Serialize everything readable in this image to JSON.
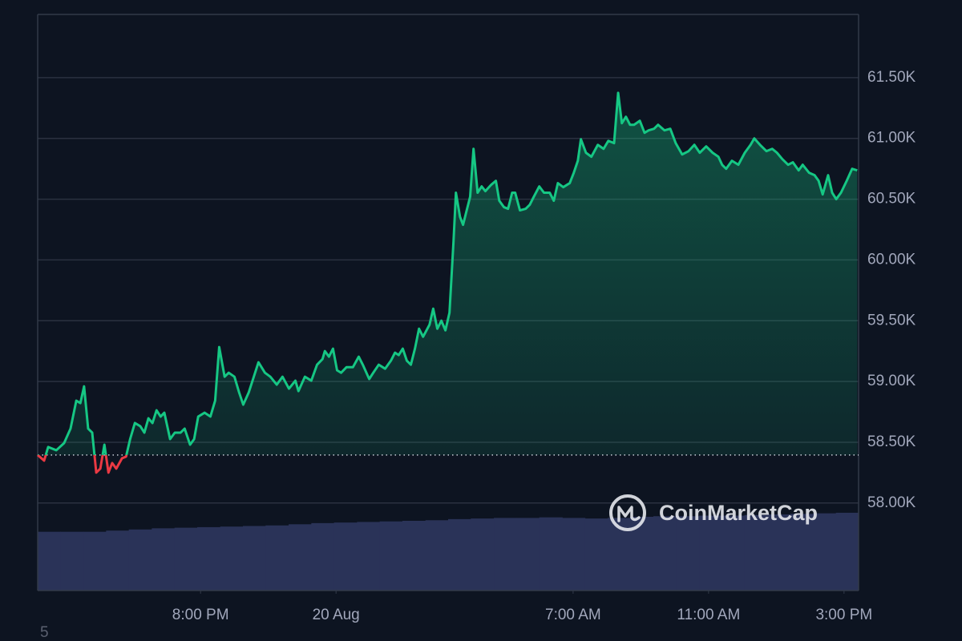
{
  "chart_data": {
    "type": "line",
    "line_color_up": "#16c784",
    "line_color_down": "#ea3943",
    "baseline": 58395,
    "xlim": [
      15.19,
      39.43
    ],
    "ylim": [
      57280,
      62020
    ],
    "y2lim": [
      0,
      100
    ],
    "grid": true,
    "xticks": [
      {
        "value": 20,
        "label": "8:00 PM"
      },
      {
        "value": 24,
        "label": "20 Aug"
      },
      {
        "value": 31,
        "label": "7:00 AM"
      },
      {
        "value": 35,
        "label": "11:00 AM"
      },
      {
        "value": 39,
        "label": "3:00 PM"
      }
    ],
    "yticks": [
      {
        "value": 58000,
        "label": "58.00K"
      },
      {
        "value": 58500,
        "label": "58.50K"
      },
      {
        "value": 59000,
        "label": "59.00K"
      },
      {
        "value": 59500,
        "label": "59.50K"
      },
      {
        "value": 60000,
        "label": "60.00K"
      },
      {
        "value": 60500,
        "label": "60.50K"
      },
      {
        "value": 61000,
        "label": "61.00K"
      },
      {
        "value": 61500,
        "label": "61.50K"
      }
    ],
    "price": {
      "x": [
        15.19,
        15.38,
        15.5,
        15.74,
        15.97,
        16.16,
        16.33,
        16.45,
        16.56,
        16.68,
        16.8,
        16.92,
        17.04,
        17.16,
        17.28,
        17.39,
        17.51,
        17.68,
        17.8,
        17.92,
        18.06,
        18.22,
        18.34,
        18.46,
        18.58,
        18.7,
        18.82,
        18.93,
        19.1,
        19.24,
        19.41,
        19.53,
        19.69,
        19.81,
        19.93,
        20.12,
        20.29,
        20.43,
        20.55,
        20.71,
        20.83,
        21.0,
        21.14,
        21.26,
        21.42,
        21.61,
        21.71,
        21.9,
        22.06,
        22.25,
        22.42,
        22.61,
        22.8,
        22.89,
        23.08,
        23.27,
        23.44,
        23.6,
        23.67,
        23.79,
        23.91,
        24.03,
        24.15,
        24.31,
        24.5,
        24.67,
        24.79,
        24.98,
        25.1,
        25.26,
        25.45,
        25.62,
        25.74,
        25.85,
        25.97,
        26.09,
        26.21,
        26.33,
        26.45,
        26.57,
        26.76,
        26.87,
        26.99,
        27.11,
        27.23,
        27.35,
        27.47,
        27.54,
        27.66,
        27.75,
        27.87,
        27.96,
        28.06,
        28.18,
        28.3,
        28.41,
        28.58,
        28.72,
        28.82,
        28.96,
        29.08,
        29.2,
        29.29,
        29.43,
        29.6,
        29.72,
        29.84,
        30.0,
        30.14,
        30.31,
        30.43,
        30.55,
        30.71,
        30.9,
        31.02,
        31.14,
        31.23,
        31.38,
        31.54,
        31.73,
        31.9,
        32.04,
        32.21,
        32.33,
        32.44,
        32.56,
        32.68,
        32.8,
        32.97,
        33.11,
        33.23,
        33.39,
        33.51,
        33.7,
        33.87,
        34.03,
        34.22,
        34.41,
        34.58,
        34.74,
        34.93,
        35.12,
        35.29,
        35.4,
        35.52,
        35.69,
        35.88,
        36.07,
        36.24,
        36.35,
        36.52,
        36.71,
        36.88,
        37.02,
        37.18,
        37.35,
        37.49,
        37.66,
        37.78,
        37.97,
        38.13,
        38.25,
        38.37,
        38.53,
        38.65,
        38.77,
        38.91,
        39.08,
        39.24,
        39.39
      ],
      "values": [
        58395,
        58349,
        58461,
        58434,
        58493,
        58612,
        58842,
        58822,
        58960,
        58612,
        58579,
        58250,
        58283,
        58480,
        58250,
        58329,
        58283,
        58368,
        58382,
        58526,
        58658,
        58632,
        58579,
        58697,
        58658,
        58763,
        58711,
        58743,
        58526,
        58579,
        58579,
        58612,
        58480,
        58526,
        58711,
        58743,
        58711,
        58842,
        59283,
        59039,
        59072,
        59039,
        58908,
        58809,
        58908,
        59072,
        59158,
        59072,
        59039,
        58974,
        59039,
        58941,
        59007,
        58921,
        59039,
        59007,
        59138,
        59184,
        59250,
        59204,
        59270,
        59092,
        59072,
        59118,
        59118,
        59204,
        59138,
        59020,
        59072,
        59138,
        59105,
        59171,
        59237,
        59217,
        59270,
        59171,
        59138,
        59270,
        59434,
        59368,
        59467,
        59599,
        59434,
        59500,
        59421,
        59566,
        60158,
        60553,
        60355,
        60289,
        60421,
        60520,
        60914,
        60553,
        60605,
        60566,
        60618,
        60651,
        60487,
        60434,
        60421,
        60553,
        60553,
        60408,
        60421,
        60454,
        60520,
        60605,
        60553,
        60553,
        60487,
        60632,
        60599,
        60632,
        60717,
        60816,
        60993,
        60882,
        60849,
        60947,
        60914,
        60980,
        60961,
        61375,
        61125,
        61178,
        61112,
        61112,
        61145,
        61046,
        61066,
        61079,
        61112,
        61066,
        61079,
        60961,
        60868,
        60895,
        60947,
        60882,
        60934,
        60882,
        60849,
        60783,
        60750,
        60816,
        60783,
        60882,
        60947,
        61000,
        60947,
        60895,
        60914,
        60882,
        60829,
        60783,
        60803,
        60737,
        60783,
        60717,
        60697,
        60651,
        60539,
        60697,
        60553,
        60500,
        60553,
        60651,
        60750,
        60737
      ]
    },
    "volume": {
      "color": "#2a3358",
      "x": [
        15.19,
        15.86,
        16.54,
        17.21,
        17.88,
        18.56,
        19.23,
        19.9,
        20.58,
        21.25,
        21.92,
        22.6,
        23.27,
        23.94,
        24.62,
        25.29,
        25.96,
        26.64,
        27.31,
        27.98,
        28.66,
        29.33,
        30.0,
        30.68,
        31.35,
        32.02,
        32.7,
        33.37,
        34.04,
        34.72,
        35.39,
        36.06,
        36.74,
        37.41,
        38.08,
        38.76
      ],
      "values": [
        10.2,
        10.2,
        10.2,
        10.4,
        10.6,
        10.8,
        10.9,
        11.0,
        11.1,
        11.2,
        11.3,
        11.5,
        11.7,
        11.8,
        11.9,
        12.0,
        12.1,
        12.2,
        12.4,
        12.5,
        12.6,
        12.6,
        12.7,
        12.6,
        12.5,
        12.6,
        12.8,
        12.9,
        12.9,
        13.0,
        13.0,
        13.1,
        13.2,
        13.3,
        13.4,
        13.5
      ]
    },
    "watermark": "CoinMarketCap",
    "corner_note": "5"
  }
}
